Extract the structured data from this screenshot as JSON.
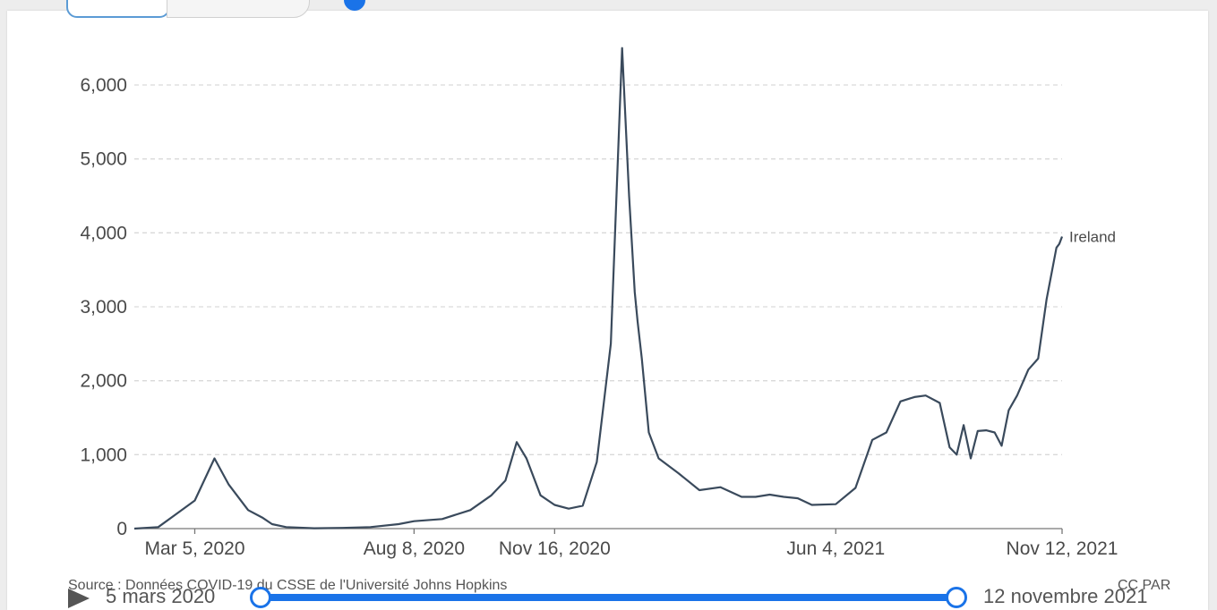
{
  "colors": {
    "line": "#3a4a5c",
    "grid": "#d9d9d9",
    "accent": "#1a73e8"
  },
  "chart_data": {
    "type": "line",
    "title": "",
    "xlabel": "",
    "ylabel": "",
    "ylim": [
      0,
      6500
    ],
    "yticks": [
      0,
      1000,
      2000,
      3000,
      4000,
      5000,
      6000
    ],
    "ytick_labels": [
      "0",
      "1,000",
      "2,000",
      "3,000",
      "4,000",
      "5,000",
      "6,000"
    ],
    "xlim": [
      "2020-01-22",
      "2021-11-12"
    ],
    "xticks": [
      "2020-03-05",
      "2020-08-08",
      "2020-11-16",
      "2021-06-04",
      "2021-11-12"
    ],
    "xtick_labels": [
      "Mar 5, 2020",
      "Aug 8, 2020",
      "Nov 16, 2020",
      "Jun 4, 2021",
      "Nov 12, 2021"
    ],
    "grid": true,
    "series": [
      {
        "name": "Ireland",
        "x": [
          "2020-01-22",
          "2020-02-08",
          "2020-02-21",
          "2020-03-05",
          "2020-03-19",
          "2020-03-29",
          "2020-04-06",
          "2020-04-12",
          "2020-04-22",
          "2020-04-29",
          "2020-05-09",
          "2020-05-29",
          "2020-06-18",
          "2020-07-08",
          "2020-07-28",
          "2020-08-08",
          "2020-08-28",
          "2020-09-17",
          "2020-10-02",
          "2020-10-12",
          "2020-10-20",
          "2020-10-27",
          "2020-11-06",
          "2020-11-16",
          "2020-11-26",
          "2020-12-06",
          "2020-12-16",
          "2020-12-26",
          "2021-01-03",
          "2021-01-08",
          "2021-01-12",
          "2021-01-14",
          "2021-01-17",
          "2021-01-22",
          "2021-01-29",
          "2021-02-12",
          "2021-02-27",
          "2021-03-14",
          "2021-03-29",
          "2021-04-08",
          "2021-04-18",
          "2021-04-28",
          "2021-05-08",
          "2021-05-18",
          "2021-06-04",
          "2021-06-18",
          "2021-06-30",
          "2021-07-10",
          "2021-07-20",
          "2021-07-30",
          "2021-08-07",
          "2021-08-17",
          "2021-08-24",
          "2021-08-29",
          "2021-09-03",
          "2021-09-08",
          "2021-09-13",
          "2021-09-19",
          "2021-09-25",
          "2021-09-30",
          "2021-10-05",
          "2021-10-11",
          "2021-10-19",
          "2021-10-26",
          "2021-11-01",
          "2021-11-05",
          "2021-11-08",
          "2021-11-10",
          "2021-11-12"
        ],
        "y": [
          0,
          20,
          200,
          380,
          950,
          600,
          400,
          250,
          150,
          60,
          20,
          5,
          10,
          20,
          60,
          100,
          130,
          250,
          450,
          650,
          1170,
          950,
          450,
          320,
          270,
          310,
          900,
          2500,
          6500,
          4500,
          3200,
          2800,
          2300,
          1300,
          950,
          750,
          520,
          560,
          430,
          430,
          460,
          430,
          410,
          320,
          330,
          550,
          1200,
          1300,
          1720,
          1780,
          1800,
          1700,
          1100,
          1000,
          1400,
          950,
          1320,
          1330,
          1300,
          1120,
          1600,
          1800,
          2150,
          2300,
          3100,
          3500,
          3800,
          3850,
          3950
        ]
      }
    ],
    "series_label_position": "end-of-line",
    "source": "Source : Données COVID-19 du CSSE de l'Université Johns Hopkins",
    "license": "CC PAR"
  },
  "timeline": {
    "play_label": "play",
    "start_label": "5 mars 2020",
    "end_label": "12 novembre 2021"
  }
}
